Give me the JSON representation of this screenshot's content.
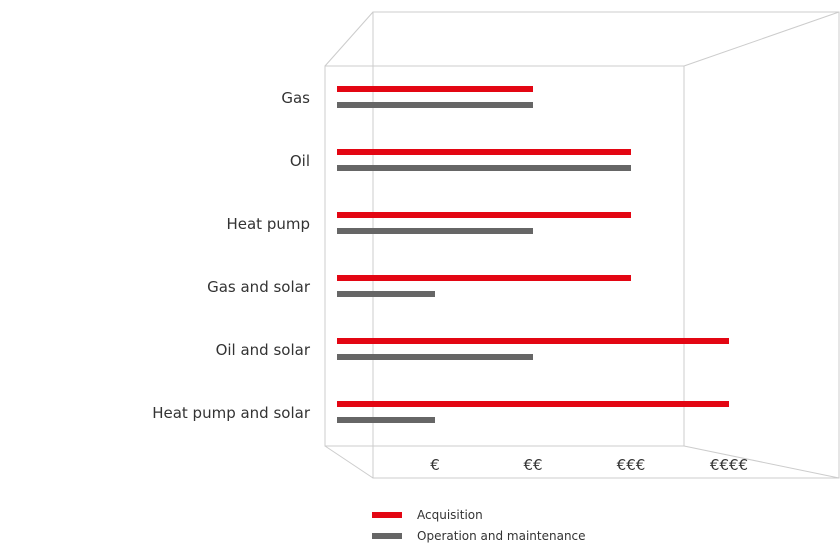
{
  "chart_data": {
    "type": "bar",
    "orientation": "horizontal",
    "categories": [
      "Gas",
      "Oil",
      "Heat pump",
      "Gas and solar",
      "Oil and solar",
      "Heat pump and solar"
    ],
    "series": [
      {
        "name": "Acquisition",
        "color": "#e30613",
        "values": [
          2,
          3,
          3,
          3,
          4,
          4
        ]
      },
      {
        "name": "Operation and maintenance",
        "color": "#666666",
        "values": [
          2,
          3,
          2,
          1,
          2,
          1
        ]
      }
    ],
    "x_ticks": [
      "€",
      "€€",
      "€€€",
      "€€€€"
    ],
    "xlim": [
      0,
      4
    ],
    "grid": false,
    "legend_position": "bottom"
  },
  "legend": {
    "acquisition_label": "Acquisition",
    "operation_label": "Operation and maintenance"
  }
}
